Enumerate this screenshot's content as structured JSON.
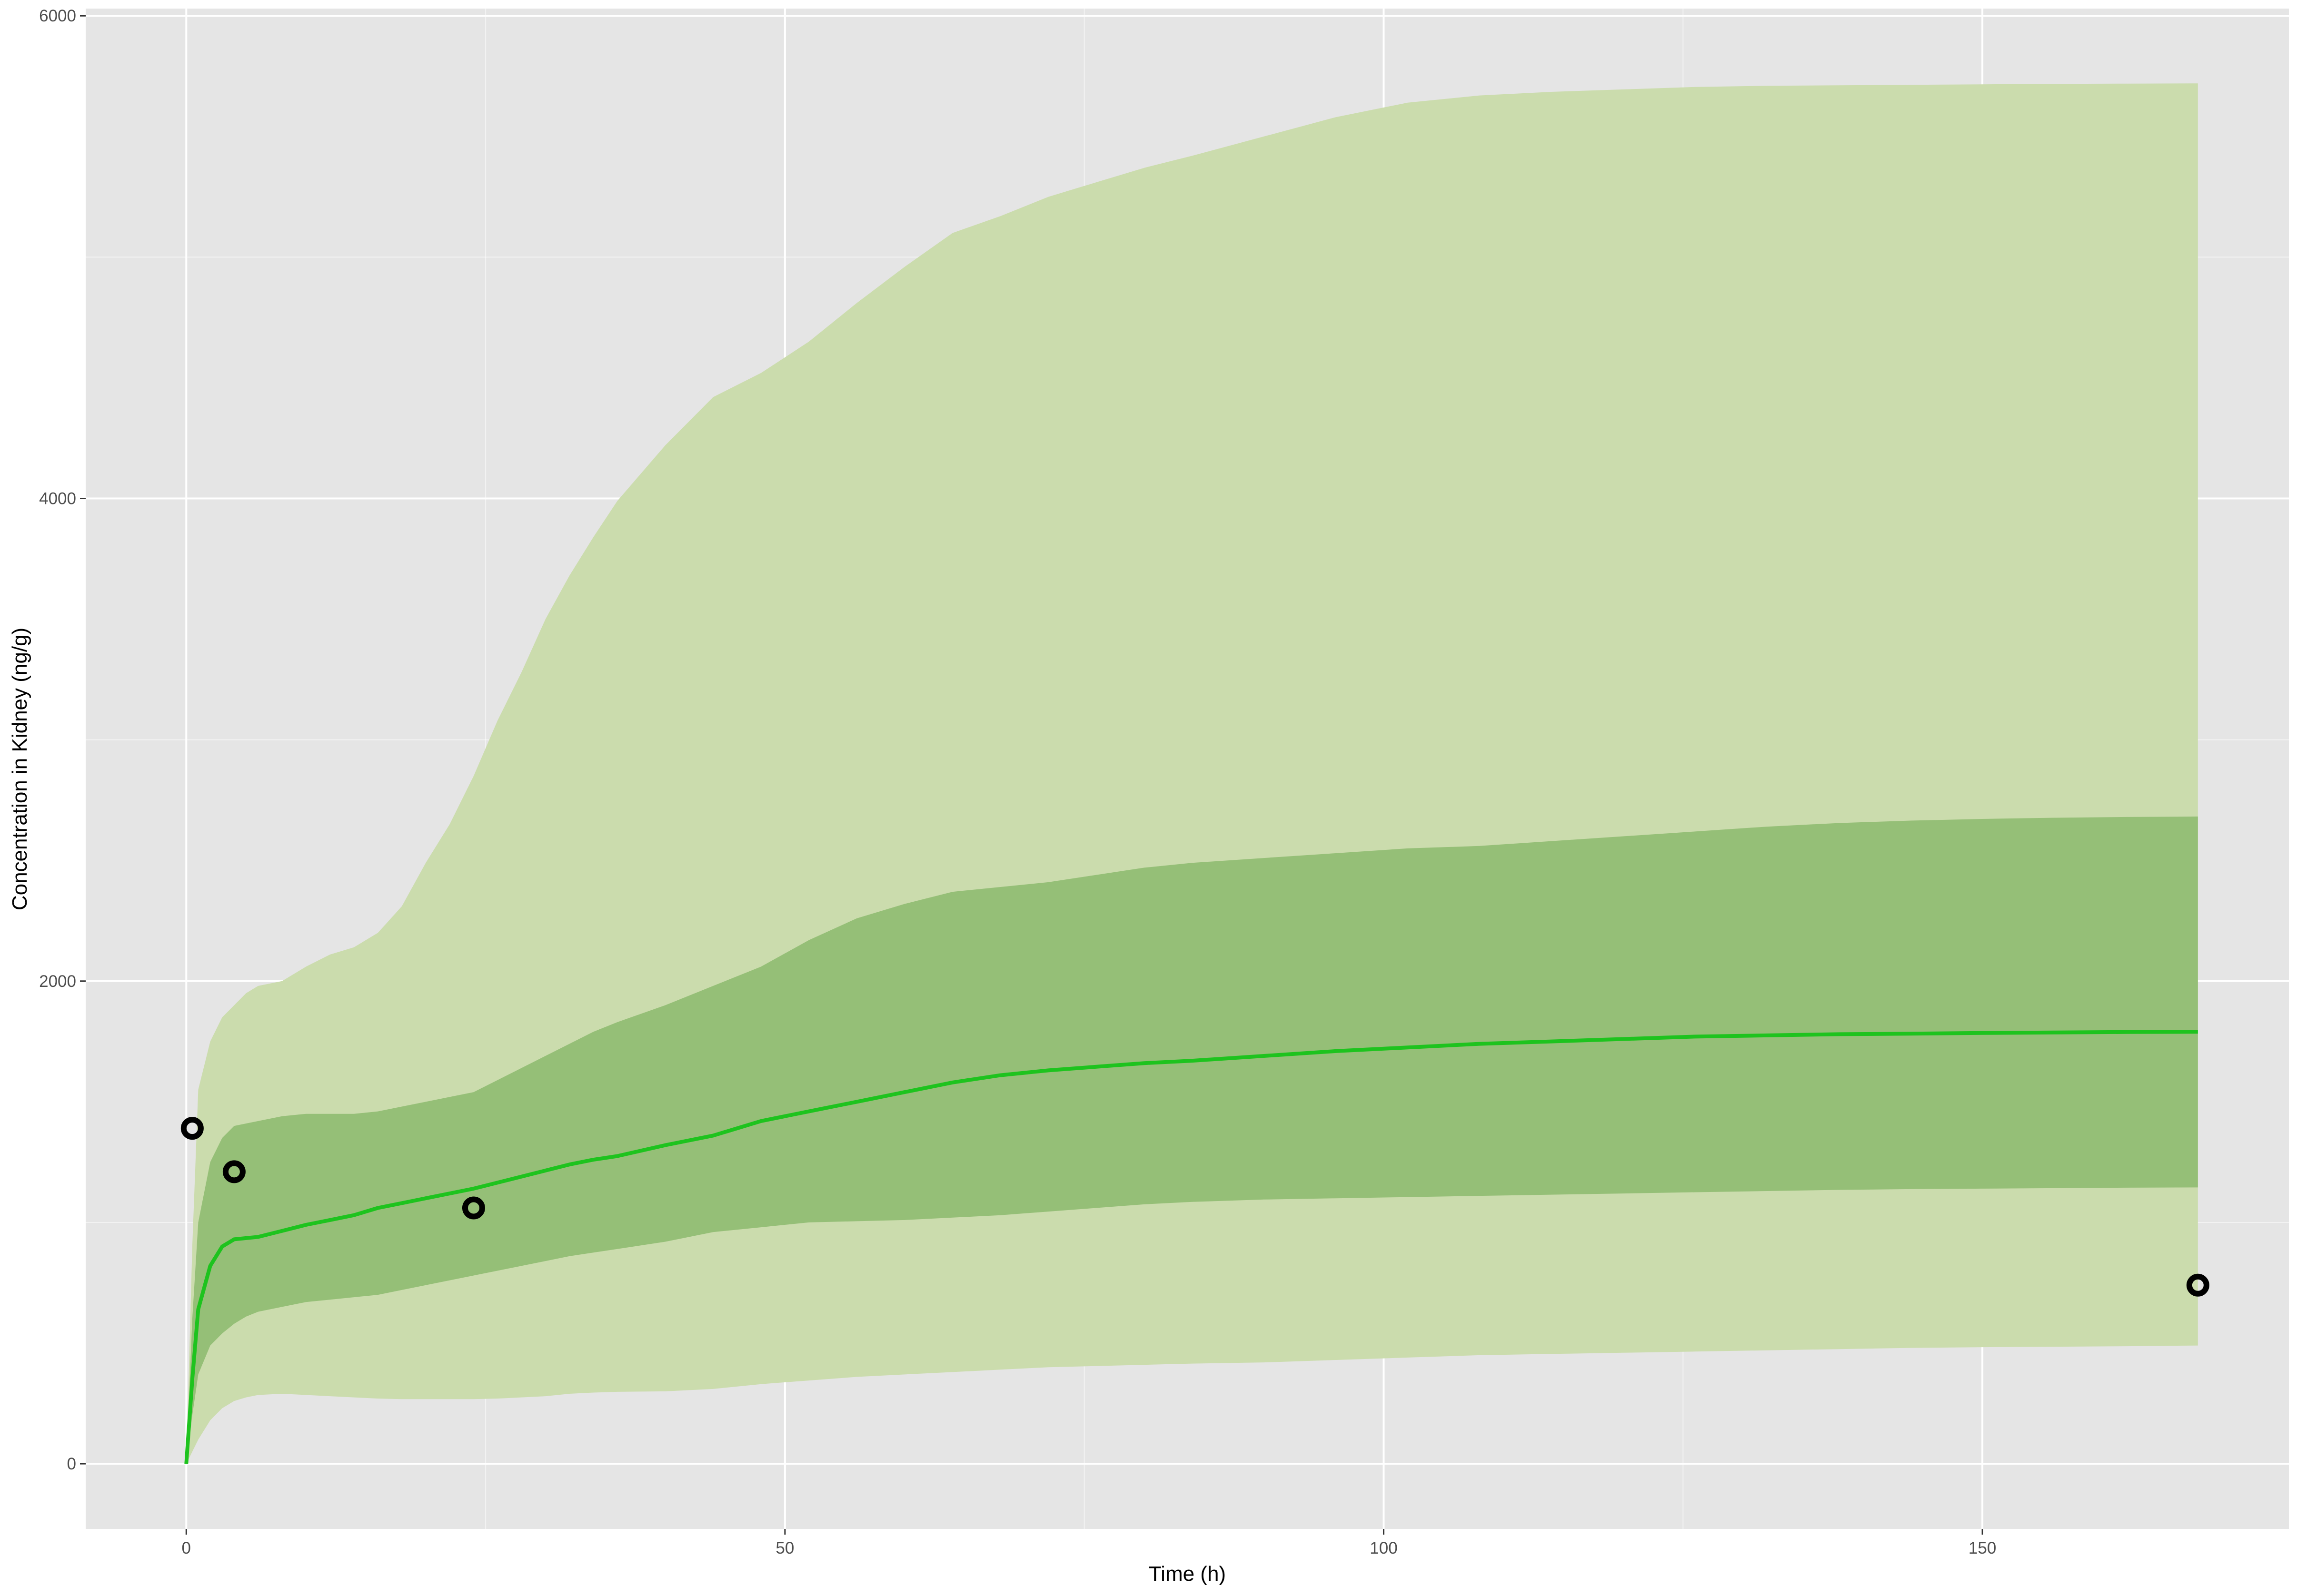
{
  "chart_data": {
    "type": "line",
    "title": "",
    "xlabel": "Time (h)",
    "ylabel": "Concentration in Kidney (ng/g)",
    "xlim": [
      -8.4,
      175.6
    ],
    "ylim": [
      -270,
      6030
    ],
    "x_ticks": [
      0,
      50,
      100,
      150
    ],
    "y_ticks": [
      0,
      2000,
      4000,
      6000
    ],
    "grid": true,
    "colors": {
      "panel_background": "#e5e5e5",
      "grid_major": "#ffffff",
      "outer_band": "#cbdcad",
      "inner_band": "#95bf77",
      "median_line": "#1ec31e",
      "observed_points": "#000000"
    },
    "series": [
      {
        "kind": "band",
        "x": [
          0,
          0.5,
          1,
          2,
          3,
          4,
          5,
          6,
          8,
          10,
          12,
          14,
          16,
          18,
          20,
          22,
          24,
          26,
          28,
          30,
          32,
          34,
          36,
          40,
          44,
          48,
          52,
          56,
          60,
          64,
          68,
          72,
          76,
          80,
          84,
          90,
          96,
          102,
          108,
          114,
          120,
          126,
          132,
          138,
          144,
          150,
          156,
          162,
          168
        ],
        "lower": [
          0,
          50,
          100,
          180,
          230,
          260,
          275,
          285,
          290,
          285,
          280,
          275,
          270,
          268,
          268,
          268,
          268,
          270,
          275,
          280,
          290,
          295,
          298,
          300,
          310,
          330,
          345,
          360,
          370,
          380,
          390,
          400,
          405,
          410,
          415,
          420,
          430,
          440,
          450,
          455,
          460,
          465,
          470,
          475,
          480,
          483,
          485,
          487,
          490
        ],
        "upper": [
          0,
          900,
          1550,
          1750,
          1850,
          1900,
          1950,
          1980,
          2000,
          2060,
          2110,
          2140,
          2200,
          2310,
          2490,
          2650,
          2850,
          3080,
          3280,
          3500,
          3680,
          3840,
          3990,
          4220,
          4420,
          4520,
          4650,
          4810,
          4960,
          5100,
          5170,
          5250,
          5310,
          5370,
          5420,
          5500,
          5580,
          5640,
          5670,
          5685,
          5695,
          5705,
          5710,
          5712,
          5714,
          5716,
          5718,
          5719,
          5720
        ]
      },
      {
        "kind": "band",
        "x": [
          0,
          0.5,
          1,
          2,
          3,
          4,
          5,
          6,
          8,
          10,
          12,
          14,
          16,
          18,
          20,
          22,
          24,
          26,
          28,
          30,
          32,
          34,
          36,
          40,
          44,
          48,
          52,
          56,
          60,
          64,
          68,
          72,
          76,
          80,
          84,
          90,
          96,
          102,
          108,
          114,
          120,
          126,
          132,
          138,
          144,
          150,
          156,
          162,
          168
        ],
        "lower": [
          0,
          200,
          370,
          490,
          540,
          580,
          610,
          630,
          650,
          670,
          680,
          690,
          700,
          720,
          740,
          760,
          780,
          800,
          820,
          840,
          860,
          875,
          890,
          920,
          960,
          980,
          1000,
          1005,
          1010,
          1020,
          1030,
          1045,
          1060,
          1075,
          1085,
          1095,
          1100,
          1105,
          1110,
          1115,
          1120,
          1125,
          1130,
          1135,
          1138,
          1140,
          1142,
          1144,
          1145
        ],
        "upper": [
          0,
          600,
          1000,
          1250,
          1350,
          1400,
          1410,
          1420,
          1440,
          1450,
          1450,
          1450,
          1460,
          1480,
          1500,
          1520,
          1540,
          1590,
          1640,
          1690,
          1740,
          1790,
          1830,
          1900,
          1980,
          2060,
          2170,
          2260,
          2320,
          2370,
          2390,
          2410,
          2440,
          2470,
          2490,
          2510,
          2530,
          2550,
          2560,
          2580,
          2600,
          2620,
          2640,
          2655,
          2665,
          2672,
          2677,
          2680,
          2682
        ]
      },
      {
        "kind": "line",
        "x": [
          0,
          0.5,
          1,
          2,
          3,
          4,
          5,
          6,
          8,
          10,
          12,
          14,
          16,
          18,
          20,
          22,
          24,
          26,
          28,
          30,
          32,
          34,
          36,
          40,
          44,
          48,
          52,
          56,
          60,
          64,
          68,
          72,
          76,
          80,
          84,
          90,
          96,
          102,
          108,
          114,
          120,
          126,
          132,
          138,
          144,
          150,
          156,
          162,
          168
        ],
        "values": [
          0,
          350,
          640,
          820,
          900,
          930,
          935,
          940,
          965,
          990,
          1010,
          1030,
          1060,
          1080,
          1100,
          1120,
          1140,
          1165,
          1190,
          1215,
          1240,
          1260,
          1275,
          1320,
          1360,
          1420,
          1460,
          1500,
          1540,
          1580,
          1610,
          1630,
          1645,
          1660,
          1670,
          1690,
          1710,
          1725,
          1740,
          1750,
          1760,
          1770,
          1775,
          1780,
          1782,
          1785,
          1787,
          1789,
          1790
        ]
      },
      {
        "kind": "points",
        "x": [
          0.5,
          4,
          24,
          168
        ],
        "values": [
          1390,
          1210,
          1060,
          740
        ]
      }
    ]
  }
}
